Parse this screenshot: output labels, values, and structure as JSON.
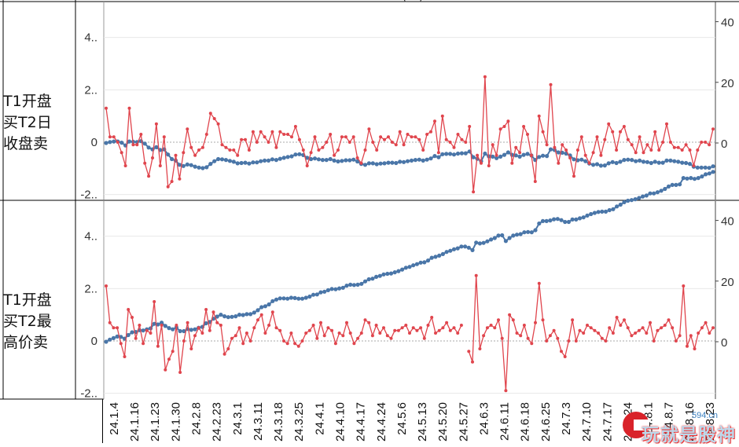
{
  "header_fragment": "(ET)",
  "row_labels": [
    "T1开盘买T2日收盘卖",
    "T1开盘买T2最高价卖"
  ],
  "row_labels_lines": [
    [
      "T1开盘",
      "买T2日",
      "收盘卖"
    ],
    [
      "T1开盘",
      "买T2最",
      "高价卖"
    ]
  ],
  "x_tick_labels": [
    "24.1.4",
    "24.1.16",
    "24.1.23",
    "24.1.30",
    "24.2.8",
    "24.2.23",
    "24.3.1",
    "24.3.11",
    "24.3.18",
    "24.3.25",
    "24.4.1",
    "24.4.10",
    "24.4.17",
    "24.4.24",
    "24.5.6",
    "24.5.13",
    "24.5.20",
    "24.5.27",
    "24.6.3",
    "24.6.11",
    "24.6.18",
    "24.6.25",
    "24.7.3",
    "24.7.10",
    "24.7.17",
    "24.7.24",
    "24.8.1",
    "24.8.7",
    "24.8.16",
    "24.8.23"
  ],
  "colors": {
    "daily": "#e0454d",
    "cumulative": "#4a76a8",
    "grid": "#e8e8e8",
    "zero": "#aaaaaa",
    "border": "#000000"
  },
  "watermark": {
    "text": "玩就是股神",
    "site": "594.cn"
  },
  "chart_data": [
    {
      "type": "line",
      "title": "T1开盘买T2日收盘卖",
      "left_axis": {
        "ticks": [
          "-2..",
          "0",
          "2..",
          "4.."
        ],
        "ylim": [
          -2.1,
          5.2
        ]
      },
      "right_axis": {
        "ticks": [
          "0",
          "20",
          "40"
        ],
        "ylim": [
          -15.4,
          45.5
        ]
      },
      "series": [
        {
          "axis": "left",
          "color": "#e0454d",
          "values": [
            1.3,
            0.2,
            0.2,
            0.0,
            -0.4,
            -0.9,
            1.3,
            -0.1,
            -0.1,
            0.3,
            -0.8,
            -1.3,
            -0.6,
            0.7,
            -0.9,
            0.2,
            -1.7,
            -1.5,
            -0.5,
            -1.4,
            -0.4,
            0.5,
            -0.2,
            -0.5,
            -0.3,
            -0.2,
            0.3,
            1.1,
            0.9,
            0.7,
            -0.1,
            -0.2,
            -0.3,
            -0.3,
            -0.5,
            0.1,
            0.1,
            -0.3,
            0.4,
            0.0,
            0.4,
            0.2,
            0.0,
            0.4,
            -0.2,
            0.4,
            0.3,
            0.3,
            0.2,
            0.6,
            0.1,
            -0.3,
            -0.9,
            -0.4,
            0.2,
            -0.3,
            -0.2,
            0.0,
            0.3,
            -0.5,
            -0.3,
            0.2,
            0.2,
            0.0,
            0.2,
            -0.6,
            -0.8,
            -0.3,
            0.5,
            0.0,
            -0.3,
            0.2,
            0.1,
            0.2,
            0.0,
            -0.1,
            0.4,
            -0.1,
            0.3,
            0.2,
            0.2,
            0.1,
            -0.3,
            0.3,
            0.4,
            0.8,
            -0.4,
            1.0,
            0.1,
            0.0,
            -0.2,
            0.3,
            0.1,
            0.0,
            0.6,
            -1.9,
            -0.5,
            -0.8,
            2.5,
            -0.9,
            -0.1,
            -0.5,
            0.5,
            0.6,
            0.8,
            -0.8,
            -0.2,
            -0.4,
            0.6,
            0.3,
            -0.5,
            -1.5,
            1.0,
            0.4,
            -0.1,
            2.2,
            -0.2,
            -0.8,
            -0.1,
            -0.3,
            -0.6,
            -1.3,
            -0.3,
            0.2,
            -0.5,
            -0.8,
            -0.4,
            0.2,
            -0.5,
            0.1,
            0.7,
            0.4,
            -0.3,
            0.4,
            0.6,
            0.1,
            -0.1,
            -0.4,
            0.2,
            -0.4,
            -0.1,
            -0.3,
            0.4,
            -0.3,
            0.0,
            0.7,
            0.0,
            -0.2,
            -0.2,
            -0.3,
            -0.1,
            -0.3,
            -0.9,
            -0.3,
            0.0,
            0.0,
            -0.1,
            0.5
          ],
          "cumulative_values": [
            0.0,
            0.3,
            0.5,
            0.5,
            0.1,
            -0.8,
            0.5,
            0.4,
            0.3,
            0.6,
            -0.2,
            -1.5,
            -2.1,
            -1.4,
            -2.3,
            -2.1,
            -3.8,
            -5.3,
            -5.8,
            -7.2,
            -7.6,
            -7.1,
            -7.3,
            -7.8,
            -8.1,
            -8.3,
            -8.0,
            -6.9,
            -6.0,
            -5.3,
            -5.4,
            -5.6,
            -5.9,
            -6.2,
            -6.7,
            -6.6,
            -6.5,
            -6.8,
            -6.4,
            -6.4,
            -6.0,
            -5.8,
            -5.8,
            -5.4,
            -5.6,
            -5.2,
            -4.9,
            -4.6,
            -4.4,
            -3.8,
            -3.7,
            -4.0,
            -4.9,
            -5.3,
            -5.1,
            -5.4,
            -5.6,
            -5.6,
            -5.3,
            -5.8,
            -6.1,
            -5.9,
            -5.7,
            -5.7,
            -5.5,
            -6.1,
            -6.9,
            -7.2,
            -6.7,
            -6.7,
            -7.0,
            -6.8,
            -6.7,
            -6.5,
            -6.5,
            -6.6,
            -6.2,
            -6.3,
            -6.0,
            -5.8,
            -5.6,
            -5.5,
            -5.8,
            -5.5,
            -5.1,
            -4.3,
            -4.7,
            -3.7,
            -3.6,
            -3.6,
            -3.8,
            -3.5,
            -3.4,
            -3.4,
            -2.8,
            -4.7,
            -5.2,
            -6.0,
            -3.5,
            -4.4,
            -4.5,
            -5.0,
            -4.5,
            -3.9,
            -3.1,
            -3.9,
            -4.1,
            -4.5,
            -3.9,
            -3.6,
            -4.1,
            -5.6,
            -4.6,
            -4.2,
            -4.3,
            -2.1,
            -2.3,
            -3.1,
            -3.2,
            -3.5,
            -4.1,
            -5.4,
            -5.7,
            -5.5,
            -6.0,
            -6.8,
            -7.2,
            -7.0,
            -7.5,
            -7.4,
            -6.7,
            -6.3,
            -6.6,
            -6.2,
            -5.6,
            -5.5,
            -5.6,
            -6.0,
            -5.8,
            -6.2,
            -6.3,
            -6.6,
            -6.2,
            -6.5,
            -6.5,
            -5.8,
            -5.8,
            -6.0,
            -6.2,
            -6.5,
            -6.6,
            -6.9,
            -7.8,
            -8.1,
            -8.1,
            -8.1,
            -8.2,
            -7.7
          ]
        },
        {
          "axis": "right",
          "color": "#4a76a8",
          "name_hidden": true
        }
      ]
    },
    {
      "type": "line",
      "title": "T1开盘买T2最高价卖",
      "left_axis": {
        "ticks": [
          "-2..",
          "0",
          "2..",
          "4.."
        ],
        "ylim": [
          -2.1,
          5.2
        ]
      },
      "right_axis": {
        "ticks": [
          "0",
          "20",
          "40"
        ],
        "ylim": [
          -15.4,
          45.5
        ]
      },
      "gap_after_index": 95,
      "series": [
        {
          "axis": "left",
          "color": "#e0454d",
          "values": [
            2.1,
            0.7,
            0.5,
            0.5,
            -0.1,
            -0.6,
            1.2,
            0.9,
            0.1,
            0.6,
            -0.1,
            0.4,
            0.3,
            1.5,
            -0.2,
            0.6,
            -1.1,
            -0.7,
            -0.4,
            0.6,
            -1.2,
            0.0,
            0.7,
            -0.3,
            0.2,
            0.5,
            0.3,
            1.2,
            0.4,
            1.1,
            0.7,
            0.6,
            -0.5,
            -0.3,
            0.1,
            0.2,
            0.5,
            -0.1,
            0.3,
            0.0,
            0.5,
            0.8,
            1.0,
            0.3,
            0.6,
            1.1,
            0.5,
            0.4,
            0.0,
            -0.1,
            0.3,
            -0.1,
            -0.2,
            0.0,
            0.3,
            0.4,
            0.6,
            0.1,
            0.7,
            0.2,
            0.5,
            0.4,
            -0.1,
            0.3,
            0.2,
            0.7,
            0.3,
            -0.1,
            0.1,
            0.3,
            0.8,
            0.7,
            0.2,
            0.6,
            0.3,
            0.5,
            0.2,
            0.1,
            0.4,
            0.4,
            0.5,
            0.6,
            0.3,
            0.5,
            0.4,
            0.5,
            0.1,
            0.6,
            0.9,
            0.3,
            0.4,
            0.5,
            0.7,
            0.4,
            0.5,
            0.3,
            0.6,
            null,
            -0.4,
            -0.8,
            2.5,
            -0.3,
            0.2,
            0.5,
            0.6,
            0.5,
            0.8,
            0.1,
            -1.9,
            1.0,
            0.8,
            0.3,
            0.2,
            0.6,
            0.1,
            -0.1,
            0.7,
            2.2,
            0.8,
            0.0,
            0.2,
            0.4,
            0.1,
            -0.4,
            -0.6,
            0.0,
            0.8,
            0.0,
            0.4,
            0.3,
            0.6,
            0.5,
            0.4,
            0.3,
            0.1,
            0.0,
            0.5,
            0.3,
            0.9,
            0.6,
            0.8,
            0.5,
            0.2,
            0.3,
            0.4,
            0.5,
            0.3,
            0.7,
            0.0,
            0.4,
            0.5,
            0.6,
            0.8,
            0.5,
            0.0,
            0.2,
            2.1,
            -0.2,
            0.2,
            -0.3,
            0.3,
            0.5,
            0.7,
            0.3,
            0.5
          ],
          "cumulative_values": [
            0.0,
            0.7,
            1.2,
            1.7,
            1.6,
            1.0,
            2.2,
            3.1,
            3.2,
            3.8,
            3.7,
            4.1,
            4.4,
            5.9,
            5.7,
            6.3,
            5.2,
            4.5,
            4.1,
            4.7,
            3.5,
            3.5,
            4.2,
            3.9,
            4.1,
            4.6,
            4.9,
            6.1,
            6.5,
            7.6,
            8.3,
            8.9,
            8.4,
            8.1,
            8.2,
            8.4,
            8.9,
            8.8,
            9.1,
            9.1,
            9.6,
            10.4,
            11.4,
            11.7,
            12.3,
            13.4,
            13.9,
            14.3,
            14.3,
            14.2,
            14.5,
            14.4,
            14.2,
            14.2,
            14.5,
            14.9,
            15.5,
            15.6,
            16.3,
            16.5,
            17.0,
            17.4,
            17.3,
            17.6,
            17.8,
            18.5,
            18.8,
            18.7,
            18.8,
            19.1,
            19.9,
            20.6,
            20.8,
            21.4,
            21.7,
            22.2,
            22.4,
            22.5,
            22.9,
            23.3,
            23.8,
            24.4,
            24.7,
            25.2,
            25.6,
            26.1,
            26.2,
            26.8,
            27.7,
            28.0,
            28.4,
            28.9,
            29.6,
            30.0,
            30.5,
            30.8,
            31.4,
            31.4,
            31.0,
            30.2,
            32.7,
            32.4,
            32.6,
            33.1,
            33.7,
            34.2,
            35.0,
            35.1,
            33.2,
            34.2,
            35.0,
            35.3,
            35.5,
            36.1,
            36.2,
            36.1,
            36.8,
            39.0,
            39.8,
            39.8,
            40.0,
            40.4,
            40.5,
            40.1,
            39.5,
            39.5,
            40.3,
            40.3,
            40.7,
            41.0,
            41.6,
            42.1,
            42.5,
            42.8,
            42.9,
            42.9,
            43.4,
            43.7,
            44.6,
            45.2,
            46.0,
            46.5,
            46.7,
            47.0,
            47.4,
            47.9,
            48.2,
            48.9,
            48.9,
            49.3,
            49.8,
            50.4,
            51.2,
            51.7,
            51.7,
            51.9,
            54.0,
            53.8,
            54.0,
            53.7,
            54.0,
            54.5,
            55.2,
            55.5,
            56.0
          ]
        },
        {
          "axis": "right",
          "color": "#4a76a8",
          "name_hidden": true
        }
      ]
    }
  ]
}
